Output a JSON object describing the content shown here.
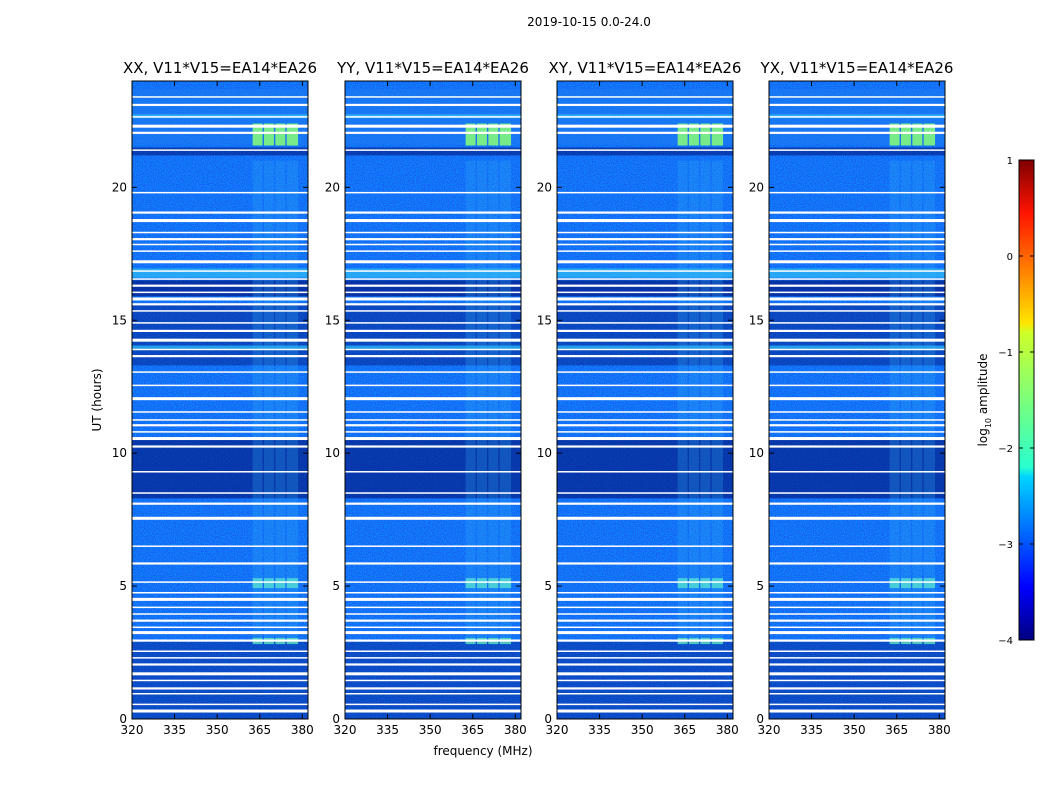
{
  "figure": {
    "suptitle": "2019-10-15 0.0-24.0"
  },
  "chart_data": {
    "type": "heatmap",
    "title": "2019-10-15 0.0-24.0",
    "xlabel": "frequency (MHz)",
    "ylabel": "UT (hours)",
    "xlim": [
      320,
      382
    ],
    "ylim": [
      0,
      24
    ],
    "xticks": [
      "320",
      "335",
      "350",
      "365",
      "380"
    ],
    "xtick_values": [
      320,
      335,
      350,
      365,
      380
    ],
    "yticks": [
      "0",
      "5",
      "10",
      "15",
      "20"
    ],
    "ytick_values": [
      0,
      5,
      10,
      15,
      20
    ],
    "panels": [
      {
        "title": "XX, V11*V15=EA14*EA26"
      },
      {
        "title": "YY, V11*V15=EA14*EA26"
      },
      {
        "title": "XY, V11*V15=EA14*EA26"
      },
      {
        "title": "YX, V11*V15=EA14*EA26"
      }
    ],
    "flagged_rows_ut": [
      0.3,
      0.55,
      0.95,
      1.15,
      1.45,
      1.7,
      2.05,
      2.3,
      2.55,
      2.95,
      3.25,
      3.45,
      3.7,
      3.95,
      4.2,
      4.5,
      4.75,
      5.15,
      5.85,
      6.5,
      7.55,
      8.1,
      8.5,
      9.3,
      10.25,
      10.55,
      10.8,
      11.05,
      11.25,
      11.55,
      12.05,
      12.55,
      13.05,
      13.65,
      13.9,
      14.25,
      14.6,
      14.9,
      15.35,
      15.6,
      15.8,
      16.05,
      16.3,
      16.55,
      16.85,
      17.2,
      17.6,
      17.85,
      18.05,
      18.3,
      18.75,
      19.05,
      19.8,
      21.4,
      22.05,
      22.3,
      22.65,
      23.1,
      23.4
    ],
    "colorbar": {
      "label_prefix": "log",
      "label_sub": "10",
      "label_suffix": " amplitude",
      "range": [
        -4,
        1
      ],
      "ticks": [
        "1",
        "0",
        "−1",
        "−2",
        "−3",
        "−4"
      ],
      "tick_values": [
        1,
        0,
        -1,
        -2,
        -3,
        -4
      ]
    }
  }
}
